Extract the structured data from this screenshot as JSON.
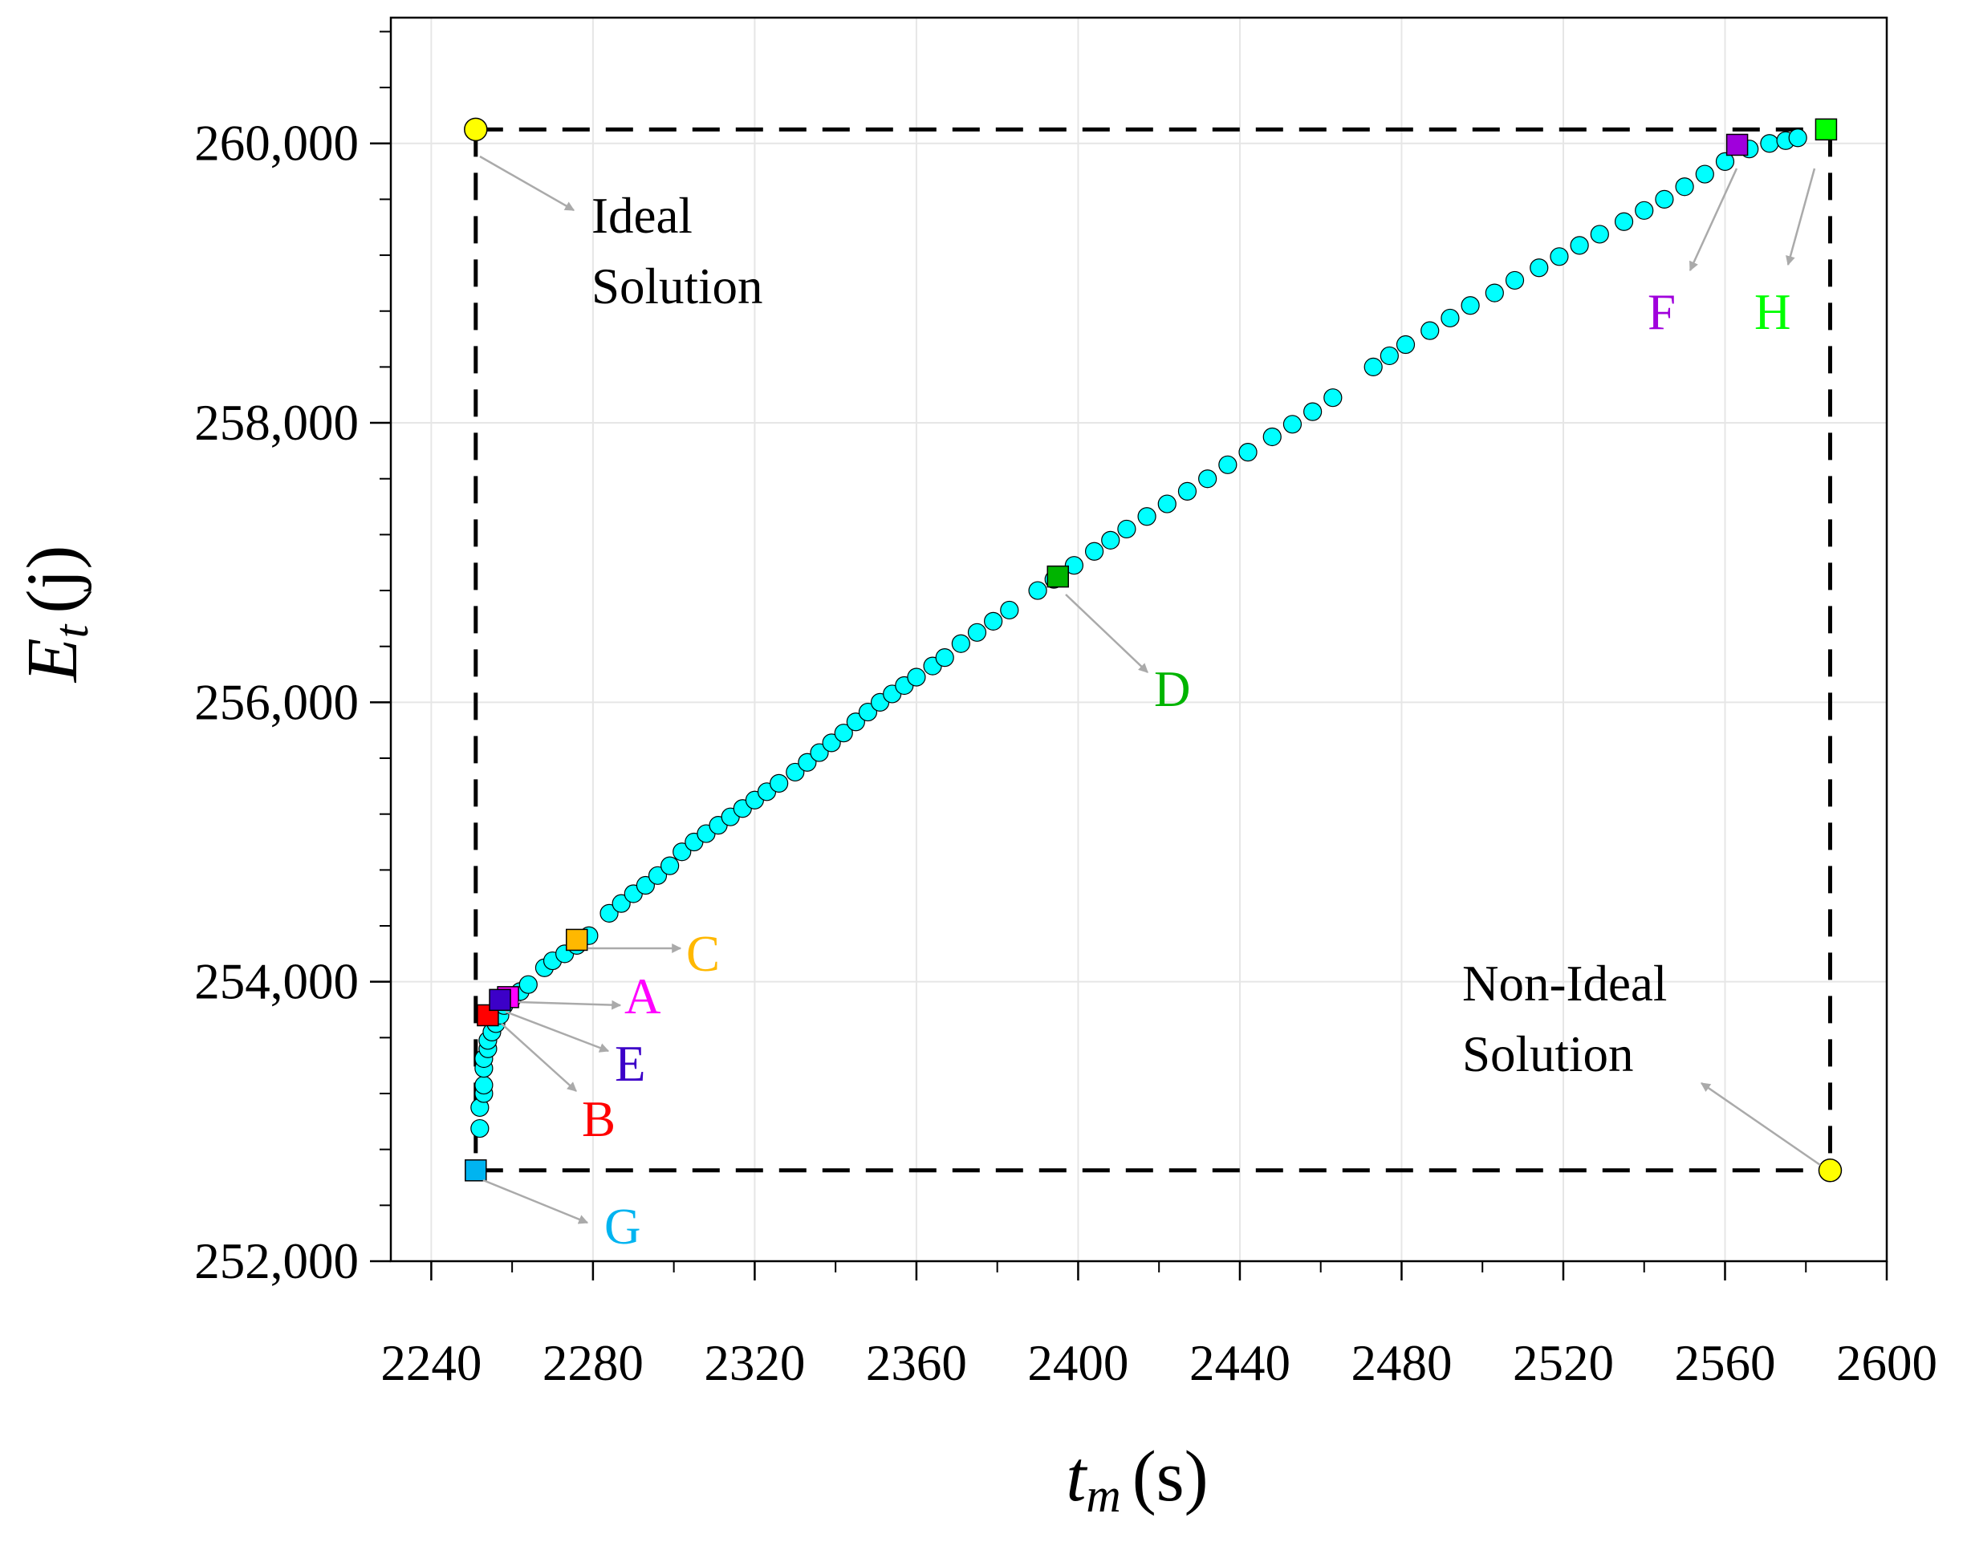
{
  "chart_data": {
    "type": "scatter",
    "title": "",
    "xlabel": {
      "symbol": "t",
      "subscript": "m",
      "unit": "(s)"
    },
    "ylabel": {
      "symbol": "E",
      "subscript": "t",
      "unit": "(j)"
    },
    "xlim": [
      2230,
      2600
    ],
    "ylim": [
      252000,
      260900
    ],
    "x_ticks": [
      2240,
      2280,
      2320,
      2360,
      2400,
      2440,
      2480,
      2520,
      2560,
      2600
    ],
    "x_tick_labels": [
      "2240",
      "2280",
      "2320",
      "2360",
      "2400",
      "2440",
      "2480",
      "2520",
      "2560",
      "2600"
    ],
    "y_ticks": [
      252000,
      254000,
      256000,
      258000,
      260000
    ],
    "y_tick_labels": [
      "252,000",
      "254,000",
      "256,000",
      "258,000",
      "260,000"
    ],
    "y_minor_step": 400,
    "grid": true,
    "colors": {
      "pareto": "#00ffff",
      "ideal": "#ffff00",
      "boundary": "#000000",
      "arrow": "#aaaaaa"
    },
    "pareto_front": [
      [
        2252,
        252950
      ],
      [
        2252,
        253100
      ],
      [
        2253,
        253200
      ],
      [
        2253,
        253260
      ],
      [
        2253,
        253380
      ],
      [
        2253,
        253450
      ],
      [
        2254,
        253520
      ],
      [
        2254,
        253580
      ],
      [
        2255,
        253640
      ],
      [
        2256,
        253700
      ],
      [
        2257,
        253760
      ],
      [
        2258,
        253830
      ],
      [
        2260,
        253880
      ],
      [
        2262,
        253930
      ],
      [
        2264,
        253980
      ],
      [
        2268,
        254100
      ],
      [
        2270,
        254150
      ],
      [
        2273,
        254200
      ],
      [
        2276,
        254260
      ],
      [
        2279,
        254330
      ],
      [
        2284,
        254490
      ],
      [
        2287,
        254560
      ],
      [
        2290,
        254630
      ],
      [
        2293,
        254690
      ],
      [
        2296,
        254760
      ],
      [
        2299,
        254830
      ],
      [
        2302,
        254930
      ],
      [
        2305,
        255000
      ],
      [
        2308,
        255060
      ],
      [
        2311,
        255120
      ],
      [
        2314,
        255180
      ],
      [
        2317,
        255240
      ],
      [
        2320,
        255300
      ],
      [
        2323,
        255360
      ],
      [
        2326,
        255420
      ],
      [
        2330,
        255500
      ],
      [
        2333,
        255570
      ],
      [
        2336,
        255640
      ],
      [
        2339,
        255710
      ],
      [
        2342,
        255780
      ],
      [
        2345,
        255860
      ],
      [
        2348,
        255930
      ],
      [
        2351,
        256000
      ],
      [
        2354,
        256060
      ],
      [
        2357,
        256120
      ],
      [
        2360,
        256180
      ],
      [
        2364,
        256260
      ],
      [
        2367,
        256320
      ],
      [
        2371,
        256420
      ],
      [
        2375,
        256500
      ],
      [
        2379,
        256580
      ],
      [
        2383,
        256660
      ],
      [
        2390,
        256800
      ],
      [
        2394,
        256880
      ],
      [
        2399,
        256980
      ],
      [
        2404,
        257080
      ],
      [
        2408,
        257160
      ],
      [
        2412,
        257240
      ],
      [
        2417,
        257330
      ],
      [
        2422,
        257420
      ],
      [
        2427,
        257510
      ],
      [
        2432,
        257600
      ],
      [
        2437,
        257700
      ],
      [
        2442,
        257790
      ],
      [
        2448,
        257900
      ],
      [
        2453,
        257990
      ],
      [
        2458,
        258080
      ],
      [
        2463,
        258180
      ],
      [
        2473,
        258400
      ],
      [
        2477,
        258480
      ],
      [
        2481,
        258560
      ],
      [
        2487,
        258660
      ],
      [
        2492,
        258750
      ],
      [
        2497,
        258840
      ],
      [
        2503,
        258930
      ],
      [
        2508,
        259020
      ],
      [
        2514,
        259110
      ],
      [
        2519,
        259190
      ],
      [
        2524,
        259270
      ],
      [
        2529,
        259350
      ],
      [
        2535,
        259440
      ],
      [
        2540,
        259520
      ],
      [
        2545,
        259600
      ],
      [
        2550,
        259690
      ],
      [
        2555,
        259780
      ],
      [
        2560,
        259870
      ],
      [
        2566,
        259960
      ],
      [
        2571,
        260000
      ],
      [
        2575,
        260020
      ],
      [
        2578,
        260040
      ]
    ],
    "ideal_points": [
      {
        "name": "ideal",
        "x": 2251,
        "y": 260100
      },
      {
        "name": "non-ideal",
        "x": 2586,
        "y": 252650
      }
    ],
    "boundary_box": {
      "x_min": 2251,
      "x_max": 2586,
      "y_min": 252650,
      "y_max": 260100
    },
    "solutions": [
      {
        "label": "A",
        "x": 2259,
        "y": 253890,
        "color": "#ff00ff"
      },
      {
        "label": "B",
        "x": 2254,
        "y": 253760,
        "color": "#ff0000"
      },
      {
        "label": "C",
        "x": 2276,
        "y": 254300,
        "color": "#ffb800"
      },
      {
        "label": "D",
        "x": 2395,
        "y": 256900,
        "color": "#00b400"
      },
      {
        "label": "E",
        "x": 2257,
        "y": 253870,
        "color": "#3c00c8"
      },
      {
        "label": "F",
        "x": 2563,
        "y": 259990,
        "color": "#a000dc"
      },
      {
        "label": "G",
        "x": 2251,
        "y": 252650,
        "color": "#00b4f0"
      },
      {
        "label": "H",
        "x": 2585,
        "y": 260100,
        "color": "#00ff00"
      }
    ],
    "annotations": [
      {
        "name": "ideal",
        "lines": [
          "Ideal",
          "Solution"
        ],
        "color": "#000000"
      },
      {
        "name": "non-ideal",
        "lines": [
          "Non-Ideal",
          "Solution"
        ],
        "color": "#000000"
      },
      {
        "name": "A",
        "lines": [
          "A"
        ],
        "color": "#ff00ff"
      },
      {
        "name": "B",
        "lines": [
          "B"
        ],
        "color": "#ff0000"
      },
      {
        "name": "C",
        "lines": [
          "C"
        ],
        "color": "#ffb800"
      },
      {
        "name": "D",
        "lines": [
          "D"
        ],
        "color": "#00b400"
      },
      {
        "name": "E",
        "lines": [
          "E"
        ],
        "color": "#3c00c8"
      },
      {
        "name": "F",
        "lines": [
          "F"
        ],
        "color": "#a000dc"
      },
      {
        "name": "G",
        "lines": [
          "G"
        ],
        "color": "#00b4f0"
      },
      {
        "name": "H",
        "lines": [
          "H"
        ],
        "color": "#00ff00"
      }
    ]
  }
}
